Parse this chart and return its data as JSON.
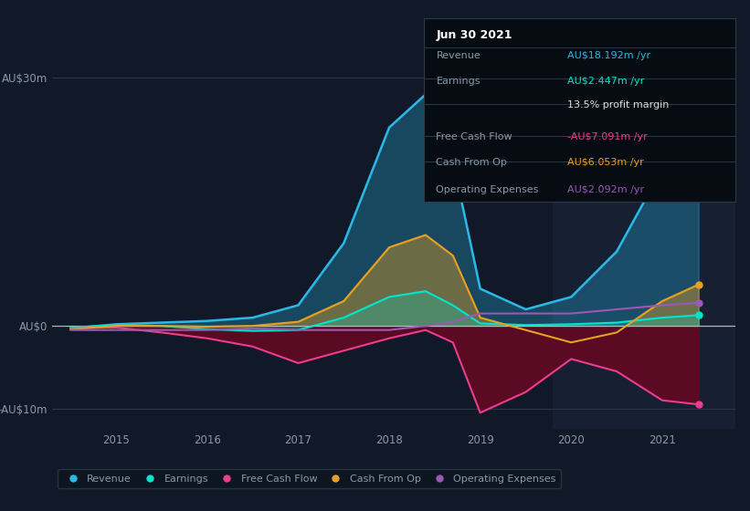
{
  "bg_color": "#111827",
  "plot_bg_color": "#111827",
  "right_panel_color": "#162032",
  "years": [
    2014.5,
    2015.0,
    2015.5,
    2016.0,
    2016.5,
    2017.0,
    2017.5,
    2018.0,
    2018.4,
    2018.7,
    2019.0,
    2019.5,
    2020.0,
    2020.5,
    2021.0,
    2021.4
  ],
  "revenue": [
    -0.3,
    0.2,
    0.4,
    0.6,
    1.0,
    2.5,
    10.0,
    24.0,
    28.0,
    20.0,
    4.5,
    2.0,
    3.5,
    9.0,
    19.0,
    21.0
  ],
  "earnings": [
    -0.2,
    0.1,
    0.0,
    -0.4,
    -0.6,
    -0.5,
    1.0,
    3.5,
    4.2,
    2.5,
    0.3,
    0.1,
    0.2,
    0.4,
    1.0,
    1.3
  ],
  "free_cash_flow": [
    -0.3,
    -0.2,
    -0.8,
    -1.5,
    -2.5,
    -4.5,
    -3.0,
    -1.5,
    -0.5,
    -2.0,
    -10.5,
    -8.0,
    -4.0,
    -5.5,
    -9.0,
    -9.5
  ],
  "cash_from_op": [
    -0.4,
    0.0,
    0.0,
    -0.1,
    0.0,
    0.5,
    3.0,
    9.5,
    11.0,
    8.5,
    1.0,
    -0.5,
    -2.0,
    -0.8,
    3.0,
    5.0
  ],
  "operating_expenses": [
    -0.5,
    -0.5,
    -0.5,
    -0.5,
    -0.3,
    -0.5,
    -0.5,
    -0.5,
    0.0,
    0.5,
    1.5,
    1.5,
    1.5,
    2.0,
    2.5,
    2.8
  ],
  "revenue_color": "#2ab8e6",
  "earnings_color": "#00e5cc",
  "fcf_color": "#e83e8c",
  "cashop_color": "#e8a020",
  "opex_color": "#9b59b6",
  "ylim": [
    -12.5,
    32
  ],
  "xlim": [
    2014.3,
    2021.8
  ],
  "yticks": [
    -10,
    0,
    30
  ],
  "ytick_labels": [
    "-AU$10m",
    "AU$0",
    "AU$30m"
  ],
  "xticks": [
    2015,
    2016,
    2017,
    2018,
    2019,
    2020,
    2021
  ],
  "grid_color": "#2a3a4a",
  "text_color": "#8899aa",
  "zero_line_color": "#cccccc",
  "info_box": {
    "title": "Jun 30 2021",
    "rows": [
      {
        "label": "Revenue",
        "value": "AU$18.192m /yr",
        "color": "#2ab8e6"
      },
      {
        "label": "Earnings",
        "value": "AU$2.447m /yr",
        "color": "#00e5cc"
      },
      {
        "label": "",
        "value": "13.5% profit margin",
        "color": "#dddddd"
      },
      {
        "label": "Free Cash Flow",
        "value": "-AU$7.091m /yr",
        "color": "#e83e8c"
      },
      {
        "label": "Cash From Op",
        "value": "AU$6.053m /yr",
        "color": "#e8a020"
      },
      {
        "label": "Operating Expenses",
        "value": "AU$2.092m /yr",
        "color": "#9b59b6"
      }
    ]
  },
  "legend": [
    {
      "label": "Revenue",
      "color": "#2ab8e6"
    },
    {
      "label": "Earnings",
      "color": "#00e5cc"
    },
    {
      "label": "Free Cash Flow",
      "color": "#e83e8c"
    },
    {
      "label": "Cash From Op",
      "color": "#e8a020"
    },
    {
      "label": "Operating Expenses",
      "color": "#9b59b6"
    }
  ]
}
